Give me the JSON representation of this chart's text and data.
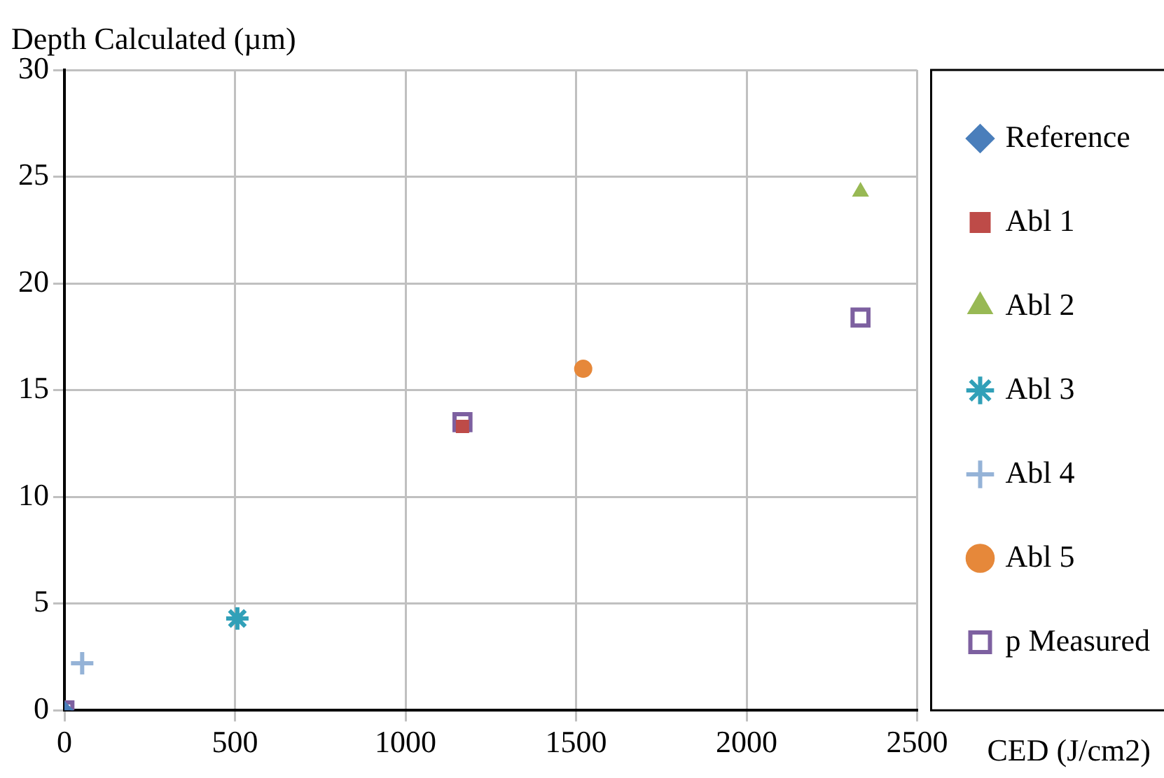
{
  "chart_data": {
    "type": "scatter",
    "xlabel": "CED (J/cm2)",
    "ylabel": "Depth Calculated (µm)",
    "xlim": [
      0,
      2500
    ],
    "xticks": [
      0,
      500,
      1000,
      1500,
      2000,
      2500
    ],
    "ylim": [
      0,
      30
    ],
    "yticks": [
      0,
      5,
      10,
      15,
      20,
      25,
      30
    ],
    "grid": true,
    "legend": "right",
    "series": [
      {
        "name": "Reference",
        "color": "#4a7ebb",
        "marker": "diamond",
        "x": [
          0
        ],
        "values": [
          0
        ]
      },
      {
        "name": "Abl 1",
        "color": "#be4b48",
        "marker": "square",
        "x": [
          1167
        ],
        "values": [
          13.3
        ]
      },
      {
        "name": "Abl 2",
        "color": "#98b954",
        "marker": "triangle",
        "x": [
          2334
        ],
        "values": [
          24.3
        ]
      },
      {
        "name": "Abl 3",
        "color": "#31a0b8",
        "marker": "cross",
        "x": [
          507
        ],
        "values": [
          4.3
        ]
      },
      {
        "name": "Abl 4",
        "color": "#95b3d7",
        "marker": "cross",
        "x": [
          52
        ],
        "values": [
          2.2
        ]
      },
      {
        "name": "Abl 5",
        "color": "#e6883a",
        "marker": "circle",
        "x": [
          1521
        ],
        "values": [
          16.0
        ]
      },
      {
        "name": "p Measured",
        "color": "#7d60a0",
        "marker": "square",
        "x": [
          0,
          1167,
          2334
        ],
        "values": [
          0,
          13.5,
          18.4
        ]
      }
    ]
  }
}
